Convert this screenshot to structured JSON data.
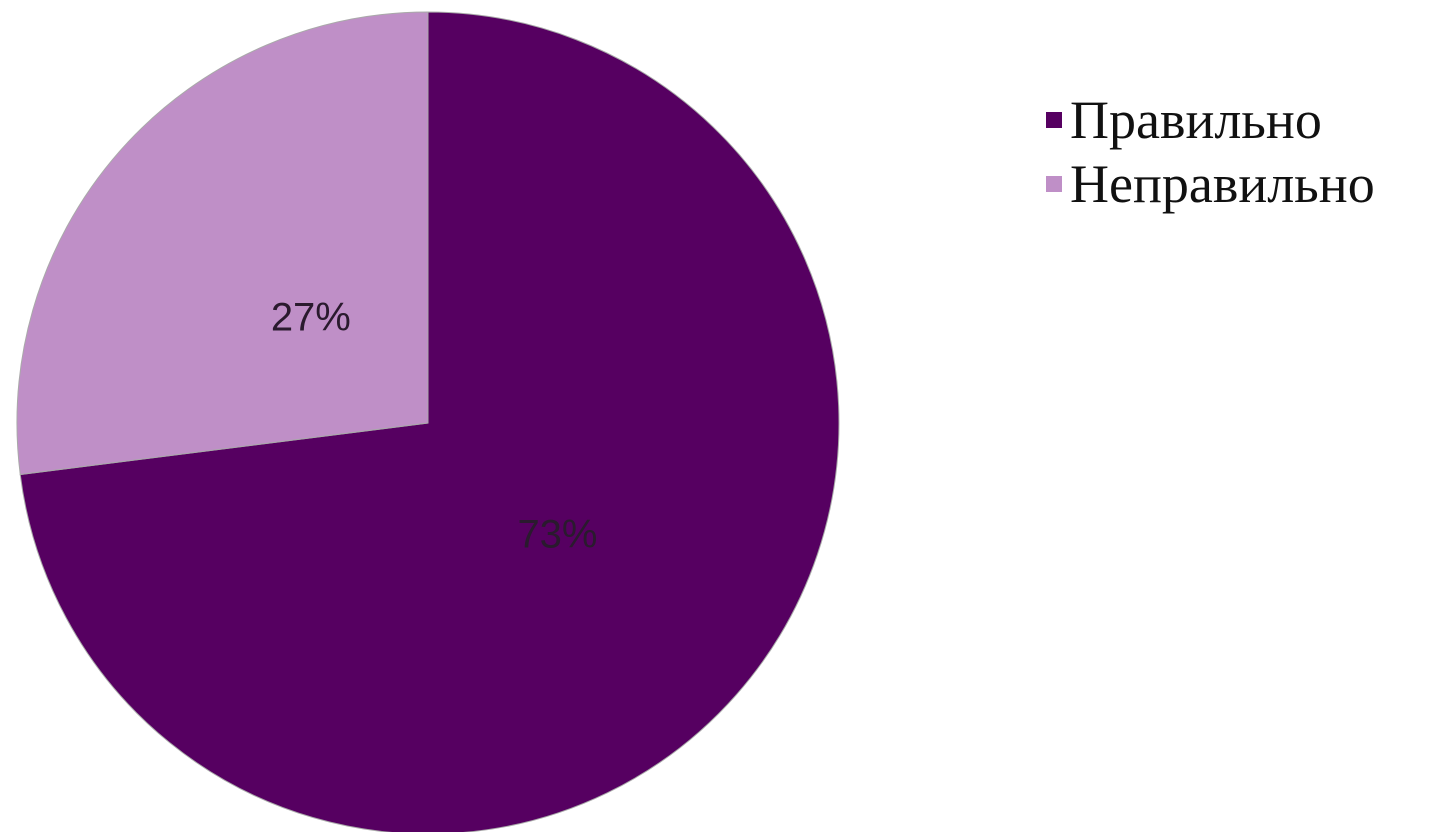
{
  "chart_data": {
    "type": "pie",
    "slices": [
      {
        "name": "Правильно",
        "value": 73,
        "label": "73%",
        "color": "#560061"
      },
      {
        "name": "Неправильно",
        "value": 27,
        "label": "27%",
        "color": "#bf8fc7"
      }
    ],
    "title": "",
    "legend_position": "top-right",
    "start_angle_deg": 0,
    "direction": "clockwise"
  },
  "legend": {
    "items": [
      {
        "label": "Правильно",
        "color": "#560061"
      },
      {
        "label": "Неправильно",
        "color": "#bf8fc7"
      }
    ]
  }
}
